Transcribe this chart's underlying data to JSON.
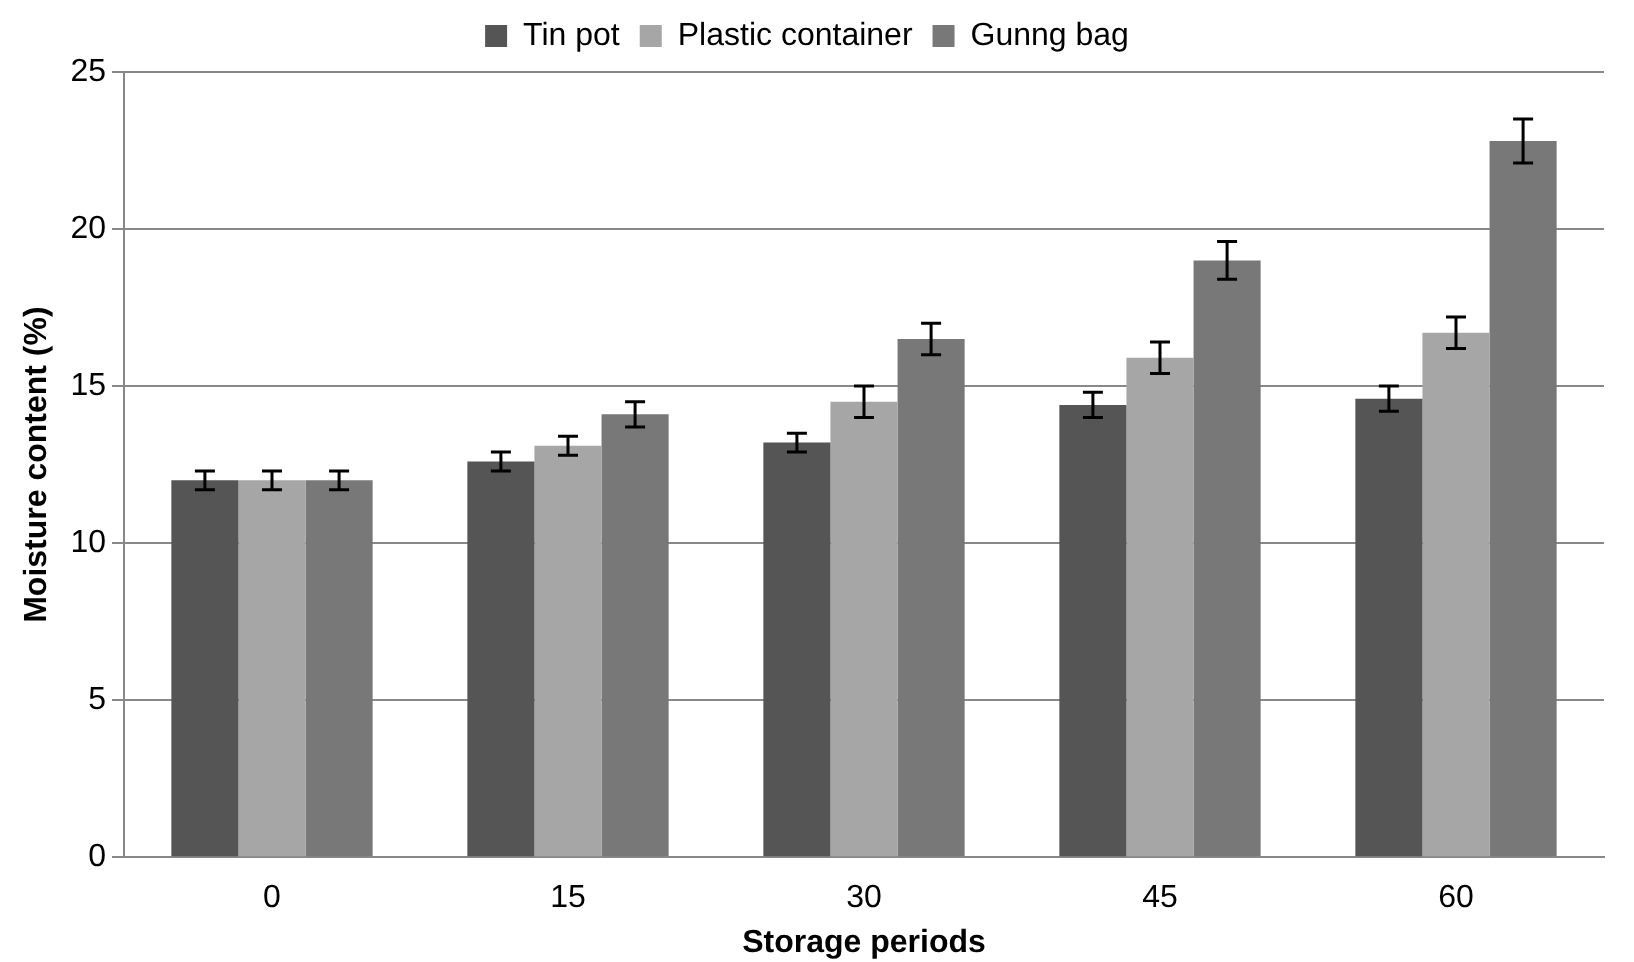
{
  "chart_data": {
    "type": "bar",
    "xlabel": "Storage periods",
    "ylabel": "Moisture content (%)",
    "categories": [
      "0",
      "15",
      "30",
      "45",
      "60"
    ],
    "series": [
      {
        "name": "Tin pot",
        "color": "#555555",
        "values": [
          12.0,
          12.6,
          13.2,
          14.4,
          14.6
        ],
        "errors": [
          0.3,
          0.3,
          0.3,
          0.4,
          0.4
        ]
      },
      {
        "name": "Plastic container",
        "color": "#a6a6a6",
        "values": [
          12.0,
          13.1,
          14.5,
          15.9,
          16.7
        ],
        "errors": [
          0.3,
          0.3,
          0.5,
          0.5,
          0.5
        ]
      },
      {
        "name": "Gunng bag",
        "color": "#787878",
        "values": [
          12.0,
          14.1,
          16.5,
          19.0,
          22.8
        ],
        "errors": [
          0.3,
          0.4,
          0.5,
          0.6,
          0.7
        ]
      }
    ],
    "ylim": [
      0,
      25
    ],
    "yticks": [
      0,
      5,
      10,
      15,
      20,
      25
    ],
    "grid": "y",
    "legend": "top"
  }
}
